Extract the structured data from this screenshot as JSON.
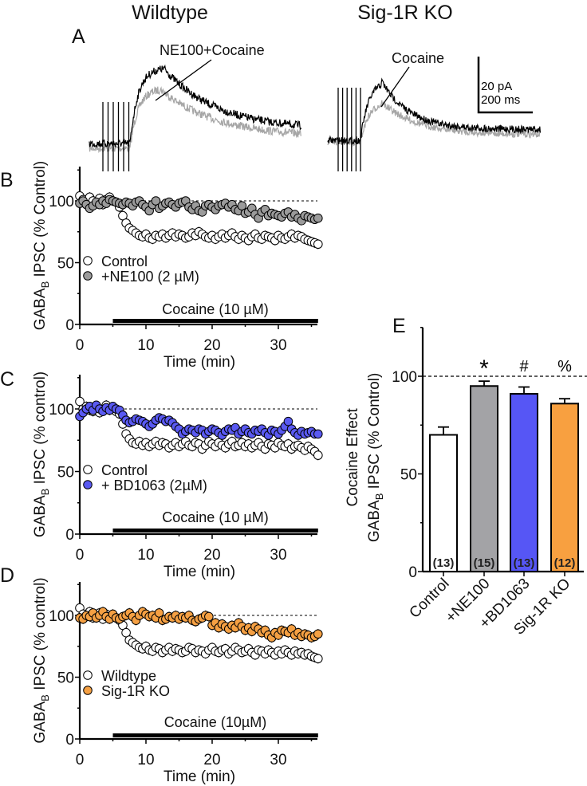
{
  "panel_a": {
    "letter": "A",
    "wildtype_title": "Wildtype",
    "ko_title": "Sig-1R KO",
    "wt_trace_label": "NE100+Cocaine",
    "ko_trace_label": "Cocaine",
    "scale_y": "20 pA",
    "scale_x": "200 ms",
    "colors": {
      "drug": "#000000",
      "control": "#a6a6a6"
    }
  },
  "chart_data": [
    {
      "panel": "B",
      "type": "scatter",
      "xlabel": "Time (min)",
      "ylabel": {
        "main": "GABA",
        "sub": "B",
        "rest": " IPSC (% Control)"
      },
      "xlim": [
        0,
        36
      ],
      "ylim": [
        0,
        128
      ],
      "xticks": [
        0,
        10,
        20,
        30
      ],
      "yticks": [
        0,
        50,
        100
      ],
      "reference_line": 100,
      "drug_bar": {
        "label": "Cocaine (10 µM)",
        "from": 5,
        "to": 36
      },
      "x_start": 0,
      "x_step": 0.5,
      "series": [
        {
          "name": "Control",
          "color": "#ffffff",
          "sem": 4,
          "values": [
            104,
            101,
            99,
            103,
            100,
            98,
            102,
            97,
            101,
            103,
            100,
            99,
            95,
            88,
            82,
            78,
            76,
            74,
            72,
            71,
            73,
            70,
            69,
            72,
            71,
            73,
            70,
            72,
            74,
            71,
            73,
            72,
            70,
            71,
            74,
            72,
            75,
            73,
            71,
            70,
            72,
            69,
            71,
            73,
            70,
            72,
            74,
            71,
            69,
            72,
            70,
            68,
            71,
            73,
            70,
            69,
            72,
            71,
            70,
            68,
            72,
            70,
            69,
            71,
            73,
            70,
            72,
            71,
            69,
            68,
            67,
            66,
            65
          ]
        },
        {
          "name": "+NE100 (2 µM)",
          "color": "#9b9b9b",
          "sem": 3,
          "values": [
            98,
            100,
            97,
            94,
            96,
            99,
            97,
            100,
            98,
            101,
            100,
            99,
            98,
            97,
            99,
            98,
            96,
            99,
            100,
            97,
            95,
            92,
            97,
            100,
            94,
            96,
            98,
            99,
            97,
            95,
            98,
            99,
            100,
            95,
            93,
            96,
            92,
            91,
            96,
            97,
            95,
            93,
            96,
            97,
            98,
            95,
            97,
            93,
            92,
            96,
            90,
            91,
            94,
            89,
            86,
            91,
            93,
            88,
            90,
            89,
            88,
            87,
            90,
            91,
            87,
            89,
            86,
            84,
            88,
            87,
            86,
            85,
            86
          ]
        }
      ],
      "legend": "left-middle"
    },
    {
      "panel": "C",
      "type": "scatter",
      "xlabel": "Time (min)",
      "ylabel": {
        "main": "GABA",
        "sub": "B",
        "rest": " IPSC (% control)"
      },
      "xlim": [
        0,
        36
      ],
      "ylim": [
        0,
        128
      ],
      "xticks": [
        0,
        10,
        20,
        30
      ],
      "yticks": [
        0,
        50,
        100
      ],
      "reference_line": 100,
      "drug_bar": {
        "label": "Cocaine (10 µM)",
        "from": 5,
        "to": 36
      },
      "x_start": 0,
      "x_step": 0.5,
      "series": [
        {
          "name": "Control",
          "color": "#ffffff",
          "sem": 4,
          "values": [
            106,
            100,
            102,
            99,
            98,
            101,
            97,
            100,
            103,
            99,
            101,
            98,
            96,
            88,
            80,
            76,
            73,
            72,
            74,
            71,
            73,
            70,
            72,
            74,
            71,
            73,
            72,
            69,
            71,
            73,
            70,
            72,
            74,
            71,
            70,
            73,
            72,
            68,
            71,
            74,
            72,
            70,
            73,
            71,
            69,
            72,
            74,
            70,
            71,
            73,
            70,
            72,
            69,
            71,
            73,
            70,
            68,
            72,
            71,
            69,
            73,
            71,
            70,
            72,
            68,
            70,
            71,
            69,
            67,
            70,
            68,
            66,
            63
          ]
        },
        {
          "name": "+ BD1063 (2µM)",
          "color": "#5a5af2",
          "sem": 3,
          "values": [
            94,
            97,
            100,
            102,
            99,
            103,
            100,
            98,
            101,
            99,
            102,
            100,
            99,
            95,
            91,
            89,
            90,
            92,
            91,
            90,
            88,
            86,
            88,
            91,
            93,
            92,
            90,
            91,
            89,
            86,
            84,
            80,
            82,
            84,
            83,
            81,
            84,
            83,
            80,
            82,
            84,
            83,
            81,
            79,
            82,
            84,
            83,
            85,
            80,
            82,
            84,
            81,
            80,
            83,
            82,
            84,
            81,
            79,
            83,
            82,
            80,
            83,
            86,
            90,
            84,
            81,
            79,
            82,
            80,
            81,
            82,
            80,
            80
          ]
        }
      ],
      "legend": "left-middle"
    },
    {
      "panel": "D",
      "type": "scatter",
      "xlabel": "Time (min)",
      "ylabel": {
        "main": "GABA",
        "sub": "B",
        "rest": " IPSC (% control)"
      },
      "xlim": [
        0,
        36
      ],
      "ylim": [
        0,
        128
      ],
      "xticks": [
        0,
        10,
        20,
        30
      ],
      "yticks": [
        0,
        50,
        100
      ],
      "reference_line": 100,
      "drug_bar": {
        "label": "Cocaine (10µM)",
        "from": 5,
        "to": 36
      },
      "x_start": 0,
      "x_step": 0.5,
      "series": [
        {
          "name": "Wildtype",
          "color": "#ffffff",
          "sem": 4,
          "values": [
            106,
            101,
            99,
            103,
            98,
            100,
            102,
            97,
            101,
            99,
            100,
            98,
            96,
            92,
            86,
            80,
            78,
            76,
            74,
            73,
            75,
            72,
            71,
            74,
            73,
            70,
            72,
            74,
            71,
            73,
            72,
            70,
            71,
            74,
            73,
            70,
            72,
            71,
            69,
            72,
            74,
            71,
            70,
            72,
            73,
            69,
            71,
            74,
            72,
            70,
            71,
            73,
            70,
            68,
            72,
            71,
            69,
            72,
            70,
            68,
            71,
            69,
            72,
            70,
            68,
            71,
            69,
            70,
            68,
            69,
            67,
            66,
            65
          ]
        },
        {
          "name": "Sig-1R KO",
          "color": "#f5a043",
          "sem": 4,
          "values": [
            98,
            97,
            100,
            99,
            102,
            98,
            100,
            103,
            99,
            97,
            101,
            98,
            97,
            99,
            100,
            102,
            99,
            96,
            100,
            103,
            101,
            99,
            100,
            98,
            102,
            96,
            97,
            99,
            98,
            100,
            97,
            99,
            98,
            100,
            96,
            95,
            97,
            98,
            100,
            99,
            92,
            94,
            90,
            93,
            91,
            89,
            92,
            90,
            94,
            91,
            88,
            90,
            87,
            91,
            89,
            86,
            88,
            84,
            82,
            86,
            84,
            88,
            87,
            86,
            89,
            84,
            86,
            83,
            85,
            84,
            82,
            83,
            85
          ]
        }
      ],
      "legend": "left-middle"
    },
    {
      "panel": "E",
      "type": "bar",
      "ylabel": {
        "line1": "Cocaine Effect",
        "main": "GABA",
        "sub": "B",
        "rest": " IPSC (% Control)"
      },
      "ylim": [
        0,
        125
      ],
      "yticks": [
        0,
        50,
        100
      ],
      "reference_line": 100,
      "categories": [
        "Control",
        "+NE100",
        "+BD1063",
        "Sig-1R KO"
      ],
      "values": [
        70,
        95,
        91,
        86
      ],
      "errors": [
        4,
        2.5,
        3.5,
        2.5
      ],
      "n": [
        "(13)",
        "(15)",
        "(13)",
        "(12)"
      ],
      "significance": [
        "",
        "*",
        "#",
        "%"
      ],
      "colors": [
        "#ffffff",
        "#a3a3a6",
        "#5656f5",
        "#f8a040"
      ]
    }
  ]
}
